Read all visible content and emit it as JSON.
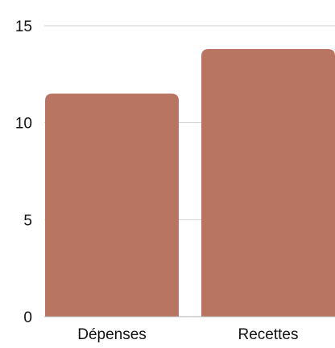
{
  "chart_data": {
    "type": "bar",
    "categories": [
      "Dépenses",
      "Recettes"
    ],
    "series": [
      {
        "values": [
          11.5,
          13.8
        ]
      }
    ],
    "title": "",
    "xlabel": "",
    "ylabel": "",
    "ylim": [
      0,
      15
    ],
    "yticks": [
      "0",
      "5",
      "10",
      "15"
    ],
    "grid": true,
    "legend": "none",
    "colors": {
      "bar": "#b87561"
    }
  }
}
